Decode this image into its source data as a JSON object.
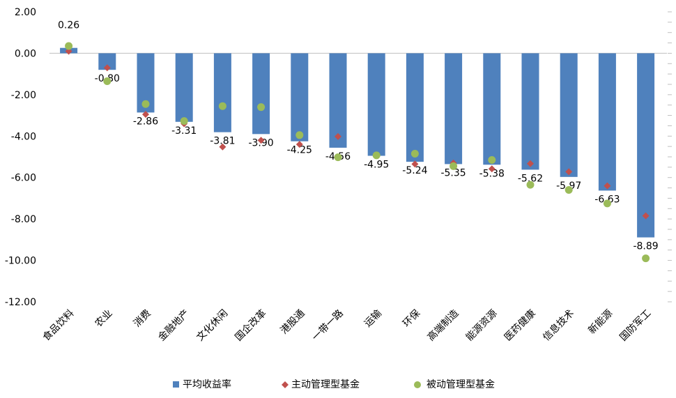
{
  "chart_data": {
    "type": "bar",
    "title": "",
    "xlabel": "",
    "ylabel": "",
    "ylim": [
      -12,
      2
    ],
    "yticks": [
      "2.00",
      "0.00",
      "-2.00",
      "-4.00",
      "-6.00",
      "-8.00",
      "-10.00",
      "-12.00"
    ],
    "categories": [
      "食品饮料",
      "农业",
      "消费",
      "金融地产",
      "文化休闲",
      "国企改革",
      "港股通",
      "一带一路",
      "运输",
      "环保",
      "高端制造",
      "能源资源",
      "医药健康",
      "信息技术",
      "新能源",
      "国防军工"
    ],
    "series": [
      {
        "name": "平均收益率",
        "kind": "bar",
        "color": "#4f81bd",
        "values": [
          0.26,
          -0.8,
          -2.86,
          -3.31,
          -3.81,
          -3.9,
          -4.25,
          -4.56,
          -4.95,
          -5.24,
          -5.35,
          -5.38,
          -5.62,
          -5.97,
          -6.63,
          -8.89
        ],
        "labels": [
          "0.26",
          "-0.80",
          "-2.86",
          "-3.31",
          "-3.81",
          "-3.90",
          "-4.25",
          "-4.56",
          "-4.95",
          "-5.24",
          "-5.35",
          "-5.38",
          "-5.62",
          "-5.97",
          "-6.63",
          "-8.89"
        ]
      },
      {
        "name": "主动管理型基金",
        "kind": "diamond",
        "color": "#c0504d",
        "values": [
          0.1,
          -0.7,
          -2.95,
          -3.4,
          -4.52,
          -4.2,
          -4.4,
          -4.02,
          -4.92,
          -5.35,
          -5.3,
          -5.58,
          -5.33,
          -5.72,
          -6.4,
          -7.85
        ]
      },
      {
        "name": "被动管理型基金",
        "kind": "circle",
        "color": "#9bbb59",
        "values": [
          0.35,
          -1.35,
          -2.45,
          -3.27,
          -2.55,
          -2.6,
          -3.95,
          -5.02,
          -4.93,
          -4.85,
          -5.45,
          -5.15,
          -6.35,
          -6.6,
          -7.25,
          -9.9
        ]
      }
    ],
    "legend_position": "bottom"
  }
}
